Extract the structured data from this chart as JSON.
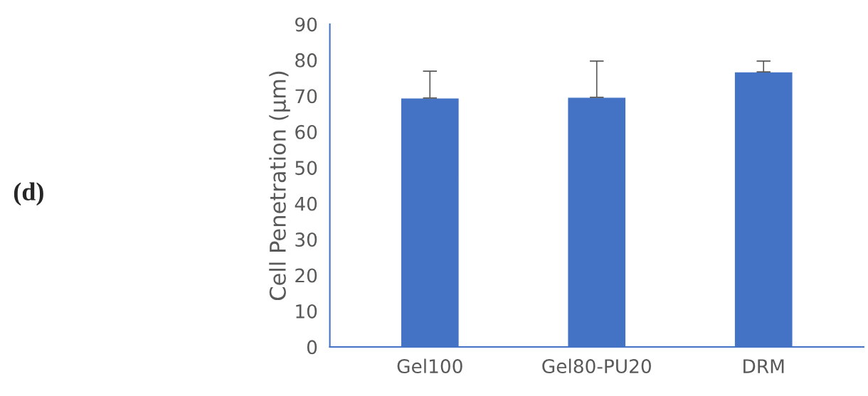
{
  "chart_data": {
    "type": "bar",
    "ylabel": "Cell Penetration (µm)",
    "categories": [
      "Gel100",
      "Gel80-PU20",
      "DRM"
    ],
    "values": [
      69.4,
      69.6,
      76.7
    ],
    "errors": [
      [
        69.4,
        76.9
      ],
      [
        69.6,
        79.7
      ],
      [
        76.7,
        79.7
      ]
    ],
    "color": "#4472c4",
    "ylim": [
      0,
      90
    ],
    "yticks": [
      0,
      10,
      20,
      30,
      40,
      50,
      60,
      70,
      80,
      90
    ],
    "grid": false,
    "annotations": [
      "(d)"
    ]
  }
}
